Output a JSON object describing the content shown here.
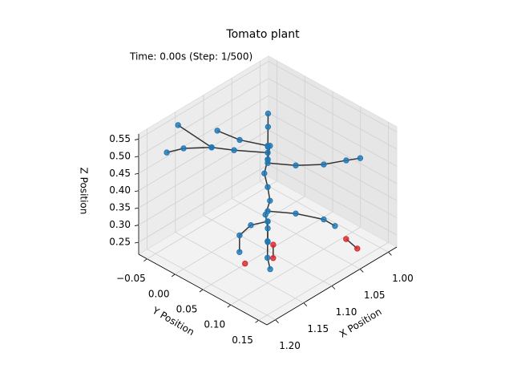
{
  "chart_data": {
    "type": "scatter3d",
    "title": "Tomato plant",
    "annotation": "Time: 0.00s (Step: 1/500)",
    "x_label": "X Position",
    "y_label": "Y Position",
    "z_label": "Z Position",
    "xlim": [
      0.985,
      1.215
    ],
    "ylim": [
      -0.065,
      0.165
    ],
    "zlim": [
      0.215,
      0.565
    ],
    "xticks": [
      {
        "value": 1.0,
        "label": "1.00"
      },
      1.05,
      {
        "value": 1.1,
        "label": "1.10"
      },
      1.15,
      {
        "value": 1.2,
        "label": "1.20"
      }
    ],
    "yticks": [
      {
        "value": -0.05,
        "label": "−0.05"
      },
      {
        "value": 0,
        "label": "0.00"
      },
      0.05,
      {
        "value": 0.1,
        "label": "0.10"
      },
      0.15
    ],
    "zticks": [
      0.25,
      {
        "value": 0.3,
        "label": "0.30"
      },
      0.35,
      {
        "value": 0.4,
        "label": "0.40"
      },
      0.45,
      {
        "value": 0.5,
        "label": "0.50"
      },
      0.55
    ],
    "grid": true,
    "line_color": "#333333",
    "branches": [
      {
        "color": "#1f77b4",
        "x": [
          1.1,
          1.1,
          1.102,
          1.098,
          1.1,
          1.103,
          1.1,
          1.098
        ],
        "y": [
          0.05,
          0.05,
          0.048,
          0.052,
          0.05,
          0.047,
          0.05,
          0.052
        ],
        "z": [
          0.24,
          0.28,
          0.32,
          0.36,
          0.4,
          0.44,
          0.48,
          0.52
        ]
      },
      {
        "color": "#1f77b4",
        "x": [
          1.1,
          1.13,
          1.15,
          1.17,
          1.18
        ],
        "y": [
          0.05,
          0.02,
          0.0,
          -0.03,
          -0.05
        ],
        "z": [
          0.5,
          0.51,
          0.52,
          0.51,
          0.49
        ]
      },
      {
        "color": "#1f77b4",
        "x": [
          1.15,
          1.16
        ],
        "y": [
          0.0,
          -0.05
        ],
        "z": [
          0.52,
          0.55
        ]
      },
      {
        "color": "#1f77b4",
        "x": [
          1.1,
          1.12,
          1.13
        ],
        "y": [
          0.05,
          0.02,
          -0.01
        ],
        "z": [
          0.52,
          0.53,
          0.54
        ]
      },
      {
        "color": "#1f77b4",
        "x": [
          1.1,
          1.08,
          1.06,
          1.04,
          1.03
        ],
        "y": [
          0.05,
          0.08,
          0.11,
          0.13,
          0.145
        ],
        "z": [
          0.47,
          0.47,
          0.48,
          0.49,
          0.5
        ]
      },
      {
        "color": "#1f77b4",
        "x": [
          1.1,
          1.08,
          1.06,
          1.05
        ],
        "y": [
          0.05,
          0.03,
          0.01,
          0.0
        ],
        "z": [
          0.48,
          0.48,
          0.5,
          0.52
        ]
      },
      {
        "color": "#1f77b4",
        "x": [
          1.1,
          1.08,
          1.06,
          1.05
        ],
        "y": [
          0.05,
          0.08,
          0.11,
          0.12
        ],
        "z": [
          0.33,
          0.33,
          0.32,
          0.3
        ]
      },
      {
        "color": "#d62728",
        "x": [
          1.05,
          1.05
        ],
        "y": [
          0.14,
          0.16
        ],
        "z": [
          0.28,
          0.27
        ]
      },
      {
        "color": "#1f77b4",
        "x": [
          1.1,
          1.12,
          1.14,
          1.15
        ],
        "y": [
          0.05,
          0.04,
          0.04,
          0.05
        ],
        "z": [
          0.3,
          0.3,
          0.29,
          0.26
        ]
      },
      {
        "color": "#d62728",
        "x": [
          1.155
        ],
        "y": [
          0.065
        ],
        "z": [
          0.245
        ]
      },
      {
        "color": "#1f77b4",
        "x": [
          1.1,
          1.12,
          1.135,
          1.145
        ],
        "y": [
          0.05,
          0.07,
          0.085,
          0.1
        ],
        "z": [
          0.3,
          0.28,
          0.26,
          0.25
        ]
      },
      {
        "color": "#d62728",
        "x": [
          1.11,
          1.12
        ],
        "y": [
          0.07,
          0.08
        ],
        "z": [
          0.26,
          0.24
        ]
      }
    ]
  }
}
